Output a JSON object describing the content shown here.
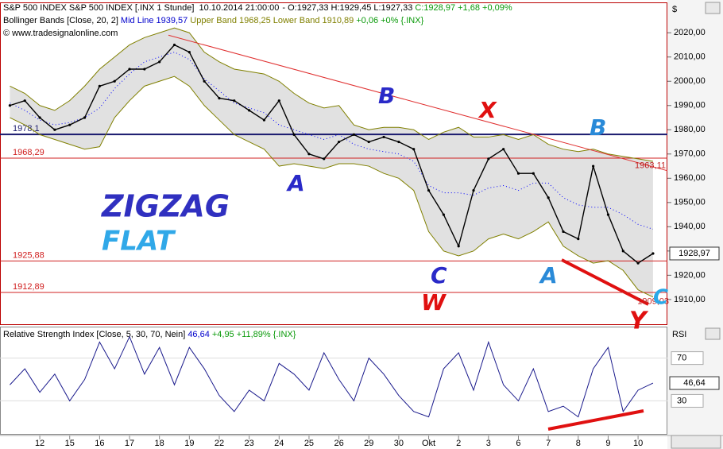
{
  "chart_data": [
    {
      "type": "line",
      "title": "S&P 500 INDEX [.INX  1 Stunde]",
      "date": "10.10.2014 21:00:00",
      "ohlc_text": "- O:1927,33 H:1929,45 L:1927,33",
      "change_text": "C:1928,97 +1,68 +0,09%",
      "indicator": "Bollinger Bands [Close, 20, 2]",
      "mid_value": "1939,57",
      "upper_value": "1968,25",
      "lower_value": "1910,89",
      "indicator_change": "+0,06 +0% {.INX}",
      "copyright": "© www.tradesignalonline.com",
      "currency": "$",
      "x": [
        -1,
        -0.5,
        0,
        0.5,
        1,
        1.5,
        2,
        2.5,
        3,
        3.5,
        4,
        4.5,
        5,
        5.5,
        6,
        6.5,
        7,
        7.5,
        8,
        8.5,
        9,
        9.5,
        10,
        10.5,
        11,
        11.5,
        12,
        12.5,
        13,
        13.5,
        14,
        14.5,
        15,
        15.5,
        16,
        16.5,
        17,
        17.5,
        18,
        18.5,
        19,
        19.5,
        20,
        20.5
      ],
      "xlim": [
        -1.33,
        20.98
      ],
      "xticks": [
        {
          "value": 0,
          "label": "12"
        },
        {
          "value": 1,
          "label": "15"
        },
        {
          "value": 2,
          "label": "16"
        },
        {
          "value": 3,
          "label": "17"
        },
        {
          "value": 4,
          "label": "18"
        },
        {
          "value": 5,
          "label": "19"
        },
        {
          "value": 6,
          "label": "22"
        },
        {
          "value": 7,
          "label": "23"
        },
        {
          "value": 8,
          "label": "24"
        },
        {
          "value": 9,
          "label": "25"
        },
        {
          "value": 10,
          "label": "26"
        },
        {
          "value": 11,
          "label": "29"
        },
        {
          "value": 12,
          "label": "30"
        },
        {
          "value": 13,
          "label": "Okt"
        },
        {
          "value": 14,
          "label": "2"
        },
        {
          "value": 15,
          "label": "3"
        },
        {
          "value": 16,
          "label": "6"
        },
        {
          "value": 17,
          "label": "7"
        },
        {
          "value": 18,
          "label": "8"
        },
        {
          "value": 19,
          "label": "9"
        },
        {
          "value": 20,
          "label": "10"
        }
      ],
      "ylim": [
        1899.8,
        2032.2
      ],
      "yticks": [
        {
          "value": 1910,
          "label": "1910,00"
        },
        {
          "value": 1920,
          "label": "1920,00"
        },
        {
          "value": 1930,
          "label": "1930,00"
        },
        {
          "value": 1940,
          "label": "1940,00"
        },
        {
          "value": 1950,
          "label": "1950,00"
        },
        {
          "value": 1960,
          "label": "1960,00"
        },
        {
          "value": 1970,
          "label": "1970,00"
        },
        {
          "value": 1980,
          "label": "1980,00"
        },
        {
          "value": 1990,
          "label": "1990,00"
        },
        {
          "value": 2000,
          "label": "2000,00"
        },
        {
          "value": 2010,
          "label": "2010,00"
        },
        {
          "value": 2020,
          "label": "2020,00"
        }
      ],
      "series": [
        {
          "name": "S&P 500 INDEX",
          "color": "#000000",
          "values": [
            1990,
            1992,
            1985,
            1980,
            1982,
            1985,
            1998,
            2000,
            2005,
            2005,
            2008,
            2015,
            2012,
            2000,
            1993,
            1992,
            1988,
            1984,
            1992,
            1978,
            1970,
            1968,
            1975,
            1978,
            1975,
            1977,
            1975,
            1972,
            1955,
            1945,
            1932,
            1955,
            1968,
            1972,
            1962,
            1962,
            1952,
            1938,
            1935,
            1965,
            1945,
            1930,
            1925,
            1928.97
          ]
        },
        {
          "name": "Upper Band",
          "color": "#808000",
          "values": [
            1998,
            1995,
            1990,
            1988,
            1992,
            1998,
            2005,
            2010,
            2015,
            2018,
            2020,
            2022,
            2020,
            2012,
            2008,
            2005,
            2004,
            2003,
            2000,
            1995,
            1991,
            1989,
            1990,
            1982,
            1980,
            1981,
            1981,
            1980,
            1976,
            1979,
            1981,
            1977,
            1977,
            1978,
            1976,
            1978,
            1974,
            1972,
            1971,
            1972,
            1970,
            1969,
            1968,
            1967
          ]
        },
        {
          "name": "Lower Band",
          "color": "#808000",
          "values": [
            1985,
            1982,
            1978,
            1976,
            1974,
            1972,
            1973,
            1985,
            1992,
            1998,
            2000,
            2002,
            1998,
            1990,
            1984,
            1978,
            1975,
            1972,
            1965,
            1966,
            1965,
            1964,
            1966,
            1966,
            1965,
            1962,
            1960,
            1955,
            1938,
            1930,
            1928,
            1930,
            1935,
            1937,
            1935,
            1938,
            1942,
            1932,
            1928,
            1925,
            1926,
            1922,
            1914,
            1911
          ]
        },
        {
          "name": "Mid Line",
          "color": "#0000ff",
          "values": [
            1991,
            1988,
            1984,
            1982,
            1983,
            1985,
            1989,
            1997,
            2003,
            2008,
            2010,
            2012,
            2009,
            2001,
            1996,
            1991,
            1989,
            1987,
            1982,
            1980,
            1978,
            1976,
            1978,
            1974,
            1972,
            1971,
            1970,
            1967,
            1957,
            1954,
            1954,
            1953,
            1956,
            1957,
            1955,
            1958,
            1958,
            1952,
            1949,
            1948,
            1948,
            1945,
            1941,
            1939
          ]
        }
      ],
      "levels": [
        {
          "value": 1978.1,
          "label": "1978,1",
          "color": "#1a1a6e"
        },
        {
          "value": 1968.29,
          "label": "1968,29",
          "color": "#d02020"
        },
        {
          "value": 1925.88,
          "label": "1925,88",
          "color": "#d02020"
        },
        {
          "value": 1912.89,
          "label": "1912,89",
          "color": "#d02020"
        }
      ],
      "trendline": {
        "x": [
          4.3,
          20.98
        ],
        "values": [
          2019,
          1963.11
        ],
        "label": "1963,11",
        "color": "#e03030"
      },
      "channel_label": {
        "value": 1909.03,
        "label": "1909,03"
      },
      "price_box": {
        "value": 1928.97,
        "label": "1928,97"
      },
      "annotations": [
        "A",
        "B",
        "X",
        "B",
        "C",
        "W",
        "A",
        "C",
        "Y",
        "ZIGZAG",
        "FLAT"
      ]
    },
    {
      "type": "line",
      "title": "Relative Strength Index [Close, 5, 30, 70, Nein]",
      "value_text": "46,64",
      "change_text": "+4,95 +11,89% {.INX}",
      "axis_title": "RSI",
      "ylim": [
        -0.9,
        98.7
      ],
      "yticks": [
        30,
        70
      ],
      "series": [
        {
          "name": "RSI",
          "color": "#1a1a8c",
          "values": [
            45,
            60,
            38,
            55,
            30,
            50,
            85,
            60,
            90,
            55,
            80,
            45,
            80,
            60,
            35,
            20,
            40,
            30,
            65,
            55,
            40,
            75,
            50,
            30,
            70,
            55,
            35,
            20,
            15,
            60,
            75,
            40,
            85,
            45,
            30,
            60,
            20,
            25,
            15,
            60,
            80,
            20,
            40,
            46.64
          ]
        }
      ],
      "value_box": {
        "value": 46.64,
        "label": "46,64"
      }
    }
  ]
}
